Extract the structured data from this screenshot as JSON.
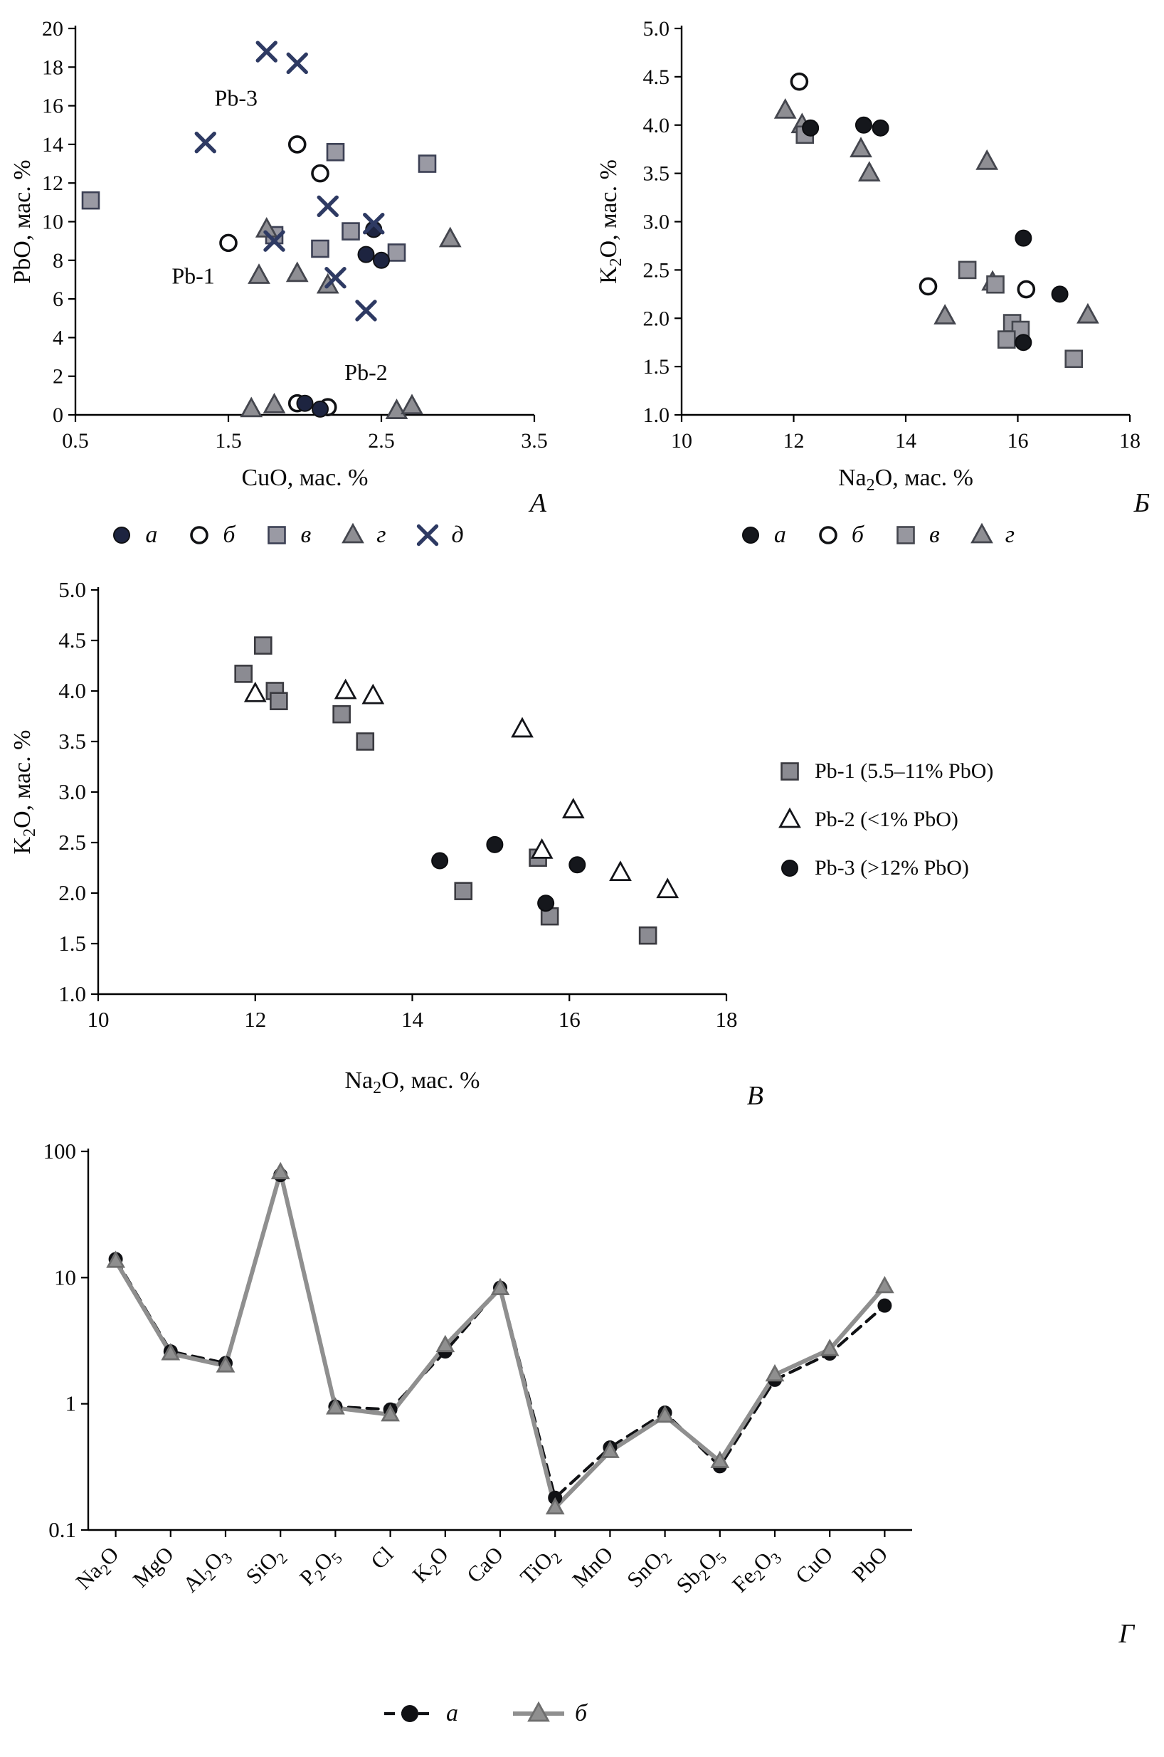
{
  "figure": {
    "background": "#ffffff",
    "colors": {
      "navy": "#2e3a63",
      "black_marker": "#15171c",
      "dark_circle": "#1d2440",
      "gray_fill": "#97979f",
      "gray_stroke": "#3e4049",
      "gray_line": "#8f8f8f"
    }
  },
  "chart_data": [
    {
      "id": "A",
      "panel_letter": "А",
      "type": "scatter",
      "xlabel": "CuO, мас. %",
      "ylabel": "PbO, мас. %",
      "xlim": [
        0.5,
        3.5
      ],
      "ylim": [
        0,
        20
      ],
      "xticks": [
        0.5,
        1.5,
        2.5,
        3.5
      ],
      "xtick_labels": [
        "0.5",
        "1.5",
        "2.5",
        "3.5"
      ],
      "yticks": [
        0,
        2,
        4,
        6,
        8,
        10,
        12,
        14,
        16,
        18,
        20
      ],
      "ytick_labels": [
        "0",
        "2",
        "4",
        "6",
        "8",
        "10",
        "12",
        "14",
        "16",
        "18",
        "20"
      ],
      "grid": false,
      "legend_position": "bottom",
      "annotations": [
        {
          "text": "Pb-3",
          "x": 1.55,
          "y": 16.0
        },
        {
          "text": "Pb-1",
          "x": 1.27,
          "y": 6.8
        },
        {
          "text": "Pb-2",
          "x": 2.4,
          "y": 1.8
        }
      ],
      "series": [
        {
          "name": "в",
          "marker": "square",
          "fill": "#9a9aa4",
          "stroke": "#3c4054",
          "points": [
            [
              0.6,
              11.1
            ],
            [
              2.2,
              13.6
            ],
            [
              2.8,
              13.0
            ],
            [
              1.8,
              9.3
            ],
            [
              2.3,
              9.5
            ],
            [
              2.1,
              8.6
            ],
            [
              2.6,
              8.4
            ]
          ]
        },
        {
          "name": "г",
          "marker": "triangle",
          "fill": "#8e8e93",
          "stroke": "#44464e",
          "points": [
            [
              1.75,
              9.6
            ],
            [
              1.7,
              7.2
            ],
            [
              1.95,
              7.3
            ],
            [
              2.15,
              6.7
            ],
            [
              2.95,
              9.1
            ],
            [
              1.65,
              0.3
            ],
            [
              1.8,
              0.5
            ],
            [
              2.6,
              0.2
            ],
            [
              2.7,
              0.45
            ]
          ]
        },
        {
          "name": "б",
          "marker": "circle-open",
          "stroke": "#101114",
          "points": [
            [
              1.95,
              14.0
            ],
            [
              2.1,
              12.5
            ],
            [
              1.5,
              8.9
            ],
            [
              1.95,
              0.6
            ],
            [
              2.15,
              0.4
            ]
          ]
        },
        {
          "name": "а",
          "marker": "circle-filled",
          "fill": "#1d2440",
          "stroke": "#101114",
          "points": [
            [
              2.45,
              9.6
            ],
            [
              2.4,
              8.3
            ],
            [
              2.5,
              8.0
            ],
            [
              2.0,
              0.6
            ],
            [
              2.1,
              0.3
            ]
          ]
        },
        {
          "name": "д",
          "marker": "x",
          "stroke": "#2e3a63",
          "points": [
            [
              1.75,
              18.8
            ],
            [
              1.95,
              18.2
            ],
            [
              1.35,
              14.1
            ],
            [
              2.15,
              10.8
            ],
            [
              1.8,
              9.0
            ],
            [
              2.45,
              9.9
            ],
            [
              2.2,
              7.1
            ],
            [
              2.4,
              5.4
            ]
          ]
        }
      ],
      "legend": [
        {
          "marker": "circle-filled",
          "fill": "#1d2440",
          "stroke": "#101114",
          "label": "а"
        },
        {
          "marker": "circle-open",
          "stroke": "#101114",
          "label": "б"
        },
        {
          "marker": "square",
          "fill": "#9a9aa4",
          "stroke": "#3c4054",
          "label": "в"
        },
        {
          "marker": "triangle",
          "fill": "#8e8e93",
          "stroke": "#44464e",
          "label": "г"
        },
        {
          "marker": "x",
          "stroke": "#2e3a63",
          "label": "д"
        }
      ]
    },
    {
      "id": "B",
      "panel_letter": "Б",
      "type": "scatter",
      "xlabel": "Na_2O, мас. %",
      "ylabel": "K_2O, мас. %",
      "xlim": [
        10,
        18
      ],
      "ylim": [
        1.0,
        5.0
      ],
      "xticks": [
        10,
        12,
        14,
        16,
        18
      ],
      "xtick_labels": [
        "10",
        "12",
        "14",
        "16",
        "18"
      ],
      "yticks": [
        1.0,
        1.5,
        2.0,
        2.5,
        3.0,
        3.5,
        4.0,
        4.5,
        5.0
      ],
      "ytick_labels": [
        "1.0",
        "1.5",
        "2.0",
        "2.5",
        "3.0",
        "3.5",
        "4.0",
        "4.5",
        "5.0"
      ],
      "grid": false,
      "legend_position": "bottom",
      "annotations": [],
      "series": [
        {
          "name": "г",
          "marker": "triangle",
          "fill": "#8e8e93",
          "stroke": "#44464e",
          "points": [
            [
              11.85,
              4.15
            ],
            [
              12.15,
              4.0
            ],
            [
              13.2,
              3.75
            ],
            [
              13.35,
              3.5
            ],
            [
              15.45,
              3.62
            ],
            [
              14.7,
              2.02
            ],
            [
              17.25,
              2.03
            ],
            [
              15.55,
              2.37
            ]
          ]
        },
        {
          "name": "в",
          "marker": "square",
          "fill": "#97979f",
          "stroke": "#44464e",
          "points": [
            [
              12.2,
              3.9
            ],
            [
              15.1,
              2.5
            ],
            [
              15.6,
              2.35
            ],
            [
              15.9,
              1.95
            ],
            [
              16.05,
              1.88
            ],
            [
              15.8,
              1.78
            ],
            [
              17.0,
              1.58
            ]
          ]
        },
        {
          "name": "б",
          "marker": "circle-open",
          "stroke": "#101114",
          "points": [
            [
              12.1,
              4.45
            ],
            [
              14.4,
              2.33
            ],
            [
              16.15,
              2.3
            ]
          ]
        },
        {
          "name": "а",
          "marker": "circle-filled",
          "fill": "#15171c",
          "stroke": "#0c0d10",
          "points": [
            [
              12.3,
              3.97
            ],
            [
              13.25,
              4.0
            ],
            [
              13.55,
              3.97
            ],
            [
              16.1,
              2.83
            ],
            [
              16.75,
              2.25
            ],
            [
              16.1,
              1.75
            ]
          ]
        }
      ],
      "legend": [
        {
          "marker": "circle-filled",
          "fill": "#15171c",
          "stroke": "#0c0d10",
          "label": "а"
        },
        {
          "marker": "circle-open",
          "stroke": "#101114",
          "label": "б"
        },
        {
          "marker": "square",
          "fill": "#97979f",
          "stroke": "#44464e",
          "label": "в"
        },
        {
          "marker": "triangle",
          "fill": "#8e8e93",
          "stroke": "#44464e",
          "label": "г"
        }
      ]
    },
    {
      "id": "V",
      "panel_letter": "В",
      "type": "scatter",
      "xlabel": "Na_2O, мас. %",
      "ylabel": "K_2O, мас. %",
      "xlim": [
        10,
        18
      ],
      "ylim": [
        1.0,
        5.0
      ],
      "xticks": [
        10,
        12,
        14,
        16,
        18
      ],
      "xtick_labels": [
        "10",
        "12",
        "14",
        "16",
        "18"
      ],
      "yticks": [
        1.0,
        1.5,
        2.0,
        2.5,
        3.0,
        3.5,
        4.0,
        4.5,
        5.0
      ],
      "ytick_labels": [
        "1.0",
        "1.5",
        "2.0",
        "2.5",
        "3.0",
        "3.5",
        "4.0",
        "4.5",
        "5.0"
      ],
      "grid": false,
      "legend_position": "right",
      "annotations": [],
      "series": [
        {
          "name": "Pb-1",
          "marker": "square",
          "fill": "#8b8b92",
          "stroke": "#3a3a40",
          "points": [
            [
              11.85,
              4.17
            ],
            [
              12.1,
              4.45
            ],
            [
              12.25,
              4.0
            ],
            [
              12.3,
              3.9
            ],
            [
              13.1,
              3.77
            ],
            [
              13.4,
              3.5
            ],
            [
              14.65,
              2.02
            ],
            [
              15.6,
              2.35
            ],
            [
              15.75,
              1.77
            ],
            [
              17.0,
              1.58
            ]
          ]
        },
        {
          "name": "Pb-2",
          "marker": "triangle-open",
          "stroke": "#131419",
          "points": [
            [
              12.0,
              3.97
            ],
            [
              13.15,
              4.0
            ],
            [
              13.5,
              3.95
            ],
            [
              15.4,
              3.62
            ],
            [
              16.05,
              2.82
            ],
            [
              15.65,
              2.42
            ],
            [
              16.65,
              2.2
            ],
            [
              17.25,
              2.03
            ]
          ]
        },
        {
          "name": "Pb-3",
          "marker": "circle-filled",
          "fill": "#15171c",
          "stroke": "#0c0d10",
          "points": [
            [
              14.35,
              2.32
            ],
            [
              15.05,
              2.48
            ],
            [
              15.7,
              1.9
            ],
            [
              16.1,
              2.28
            ]
          ]
        }
      ],
      "legend": [
        {
          "marker": "square",
          "fill": "#8b8b92",
          "stroke": "#3a3a40",
          "label": "Pb-1 (5.5–11% PbO)"
        },
        {
          "marker": "triangle-open",
          "stroke": "#131419",
          "label": "Pb-2 (<1% PbO)"
        },
        {
          "marker": "circle-filled",
          "fill": "#15171c",
          "stroke": "#0c0d10",
          "label": "Pb-3 (>12% PbO)"
        }
      ]
    },
    {
      "id": "G",
      "panel_letter": "Г",
      "type": "line",
      "yscale": "log",
      "xlabel": "",
      "ylabel": "",
      "ylim": [
        0.1,
        100
      ],
      "yticks": [
        0.1,
        1,
        10,
        100
      ],
      "ytick_labels": [
        "0.1",
        "1",
        "10",
        "100"
      ],
      "categories": [
        "Na_2O",
        "MgO",
        "Al_2O_3",
        "SiO_2",
        "P_2O_5",
        "Cl",
        "K_2O",
        "CaO",
        "TiO_2",
        "MnO",
        "SnO_2",
        "Sb_2O_5",
        "Fe_2O_3",
        "CuO",
        "PbO"
      ],
      "grid": false,
      "legend_position": "bottom",
      "annotations": [],
      "series": [
        {
          "name": "а",
          "marker": "circle-filled",
          "fill": "#101114",
          "stroke": "#101114",
          "line": "dashed",
          "line_color": "#101114",
          "values": [
            14,
            2.6,
            2.1,
            65,
            0.95,
            0.9,
            2.6,
            8.3,
            0.18,
            0.45,
            0.85,
            0.32,
            1.55,
            2.5,
            6.0
          ]
        },
        {
          "name": "б",
          "marker": "triangle",
          "fill": "#8f8f8f",
          "stroke": "#6e6e6e",
          "line": "solid",
          "line_color": "#8f8f8f",
          "values": [
            13.5,
            2.5,
            2.0,
            68,
            0.93,
            0.82,
            2.9,
            8.2,
            0.15,
            0.42,
            0.8,
            0.35,
            1.7,
            2.7,
            8.5
          ]
        }
      ],
      "legend": [
        {
          "marker": "circle-filled",
          "fill": "#101114",
          "stroke": "#101114",
          "line": "dashed",
          "line_color": "#101114",
          "label": "а"
        },
        {
          "marker": "triangle",
          "fill": "#8f8f8f",
          "stroke": "#6e6e6e",
          "line": "solid",
          "line_color": "#8f8f8f",
          "label": "б"
        }
      ]
    }
  ]
}
